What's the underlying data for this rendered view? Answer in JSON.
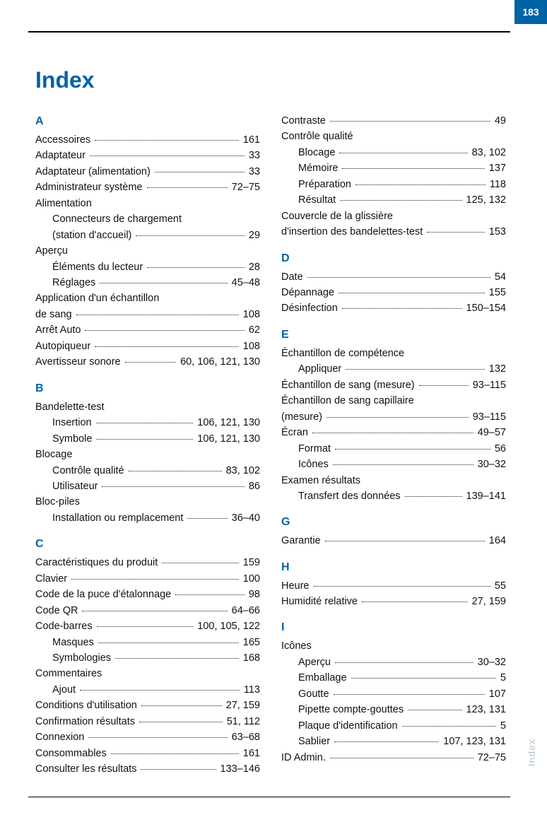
{
  "page_number": "183",
  "side_label": "Index",
  "title": "Index",
  "colors": {
    "accent": "#0063a5",
    "side_label": "#b8c5cf",
    "text": "#111111",
    "background": "#ffffff"
  },
  "left_col": [
    {
      "type": "section",
      "text": "A"
    },
    {
      "label": "Accessoires",
      "page": "161"
    },
    {
      "label": "Adaptateur",
      "page": "33"
    },
    {
      "label": "Adaptateur (alimentation)",
      "page": "33"
    },
    {
      "label": "Administrateur système",
      "page": "72–75"
    },
    {
      "label": "Alimentation",
      "noline": true
    },
    {
      "label": "Connecteurs de chargement",
      "sub": true,
      "noline": true
    },
    {
      "label": "(station d'accueil)",
      "sub": true,
      "page": "29"
    },
    {
      "label": "Aperçu",
      "noline": true
    },
    {
      "label": "Éléments du lecteur",
      "sub": true,
      "page": "28"
    },
    {
      "label": "Réglages",
      "sub": true,
      "page": "45–48"
    },
    {
      "label": "Application d'un échantillon",
      "noline": true
    },
    {
      "label": "de sang",
      "page": "108"
    },
    {
      "label": "Arrêt Auto",
      "page": "62"
    },
    {
      "label": "Autopiqueur",
      "page": "108"
    },
    {
      "label": "Avertisseur sonore",
      "page": "60, 106, 121, 130"
    },
    {
      "type": "section",
      "text": "B"
    },
    {
      "label": "Bandelette-test",
      "noline": true
    },
    {
      "label": "Insertion",
      "sub": true,
      "page": "106, 121, 130"
    },
    {
      "label": "Symbole",
      "sub": true,
      "page": "106, 121, 130"
    },
    {
      "label": "Blocage",
      "noline": true
    },
    {
      "label": "Contrôle qualité",
      "sub": true,
      "page": "83, 102"
    },
    {
      "label": "Utilisateur",
      "sub": true,
      "page": "86"
    },
    {
      "label": "Bloc-piles",
      "noline": true
    },
    {
      "label": "Installation ou remplacement",
      "sub": true,
      "page": "36–40"
    },
    {
      "type": "section",
      "text": "C"
    },
    {
      "label": "Caractéristiques du produit",
      "page": "159"
    },
    {
      "label": "Clavier",
      "page": "100"
    },
    {
      "label": "Code de la puce d'étalonnage",
      "page": "98"
    },
    {
      "label": "Code QR",
      "page": "64–66"
    },
    {
      "label": "Code-barres",
      "page": "100, 105, 122"
    },
    {
      "label": "Masques",
      "sub": true,
      "page": "165"
    },
    {
      "label": "Symbologies",
      "sub": true,
      "page": "168"
    },
    {
      "label": "Commentaires",
      "noline": true
    },
    {
      "label": "Ajout",
      "sub": true,
      "page": "113"
    },
    {
      "label": "Conditions d'utilisation",
      "page": "27, 159"
    },
    {
      "label": "Confirmation résultats",
      "page": "51, 112"
    },
    {
      "label": "Connexion",
      "page": "63–68"
    },
    {
      "label": "Consommables",
      "page": "161"
    },
    {
      "label": "Consulter les résultats",
      "page": "133–146"
    }
  ],
  "right_col": [
    {
      "label": "Contraste",
      "page": "49"
    },
    {
      "label": "Contrôle qualité",
      "noline": true
    },
    {
      "label": "Blocage",
      "sub": true,
      "page": "83, 102"
    },
    {
      "label": "Mémoire",
      "sub": true,
      "page": "137"
    },
    {
      "label": "Préparation",
      "sub": true,
      "page": "118"
    },
    {
      "label": "Résultat",
      "sub": true,
      "page": "125, 132"
    },
    {
      "label": "Couvercle de la glissière",
      "noline": true
    },
    {
      "label": "d'insertion des bandelettes-test",
      "page": "153"
    },
    {
      "type": "section",
      "text": "D"
    },
    {
      "label": "Date",
      "page": "54"
    },
    {
      "label": "Dépannage",
      "page": "155"
    },
    {
      "label": "Désinfection",
      "page": "150–154"
    },
    {
      "type": "section",
      "text": "E"
    },
    {
      "label": "Échantillon de compétence",
      "noline": true
    },
    {
      "label": "Appliquer",
      "sub": true,
      "page": "132"
    },
    {
      "label": "Échantillon de sang (mesure)",
      "page": "93–115"
    },
    {
      "label": "Échantillon de sang capillaire",
      "noline": true
    },
    {
      "label": "(mesure)",
      "page": "93–115"
    },
    {
      "label": "Écran",
      "page": "49–57"
    },
    {
      "label": "Format",
      "sub": true,
      "page": "56"
    },
    {
      "label": "Icônes",
      "sub": true,
      "page": "30–32"
    },
    {
      "label": "Examen résultats",
      "noline": true
    },
    {
      "label": "Transfert des données",
      "sub": true,
      "page": "139–141"
    },
    {
      "type": "section",
      "text": "G"
    },
    {
      "label": "Garantie",
      "page": "164"
    },
    {
      "type": "section",
      "text": "H"
    },
    {
      "label": "Heure",
      "page": "55"
    },
    {
      "label": "Humidité relative",
      "page": "27, 159"
    },
    {
      "type": "section",
      "text": "I"
    },
    {
      "label": "Icônes",
      "noline": true
    },
    {
      "label": "Aperçu",
      "sub": true,
      "page": "30–32"
    },
    {
      "label": "Emballage",
      "sub": true,
      "page": "5"
    },
    {
      "label": "Goutte",
      "sub": true,
      "page": "107"
    },
    {
      "label": "Pipette compte-gouttes",
      "sub": true,
      "page": "123, 131"
    },
    {
      "label": "Plaque d'identification",
      "sub": true,
      "page": "5"
    },
    {
      "label": "Sablier",
      "sub": true,
      "page": "107, 123, 131"
    },
    {
      "label": "ID Admin.",
      "page": "72–75"
    }
  ]
}
